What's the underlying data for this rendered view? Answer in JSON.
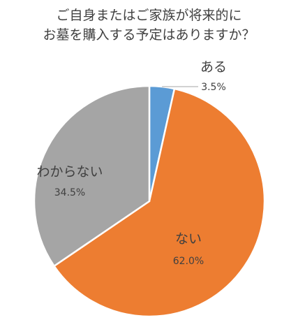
{
  "title": {
    "line1": "ご自身またはご家族が将来的に",
    "line2": "お墓を購入する予定はありますか？"
  },
  "chart_data": {
    "type": "pie",
    "title": "ご自身またはご家族が将来的に お墓を購入する予定はありますか？",
    "categories": [
      "ある",
      "ない",
      "わからない"
    ],
    "values": [
      3.5,
      62.0,
      34.5
    ],
    "value_labels": [
      "3.5%",
      "62.0%",
      "34.5%"
    ],
    "colors": [
      "#5B9BD5",
      "#ED7D31",
      "#A5A5A5"
    ],
    "start_angle": "12 o'clock",
    "direction": "clockwise",
    "legend": "none",
    "labels_position": "inside, except ある outside with leader line"
  }
}
